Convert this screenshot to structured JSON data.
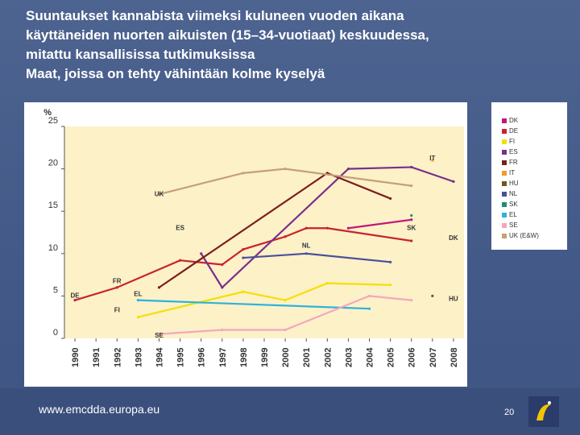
{
  "title_lines": [
    "Suuntaukset kannabista viimeksi kuluneen vuoden aikana",
    "käyttäneiden nuorten aikuisten (15–34-vuotiaat) keskuudessa,",
    "mitattu kansallisissa tutkimuksissa",
    "Maat, joissa on tehty vähintään kolme kyselyä"
  ],
  "footer": {
    "url": "www.emcdda.europa.eu",
    "page": "20"
  },
  "chart_data": {
    "type": "line",
    "ylabel": "%",
    "ylim": [
      0,
      25
    ],
    "yticks": [
      "0",
      "5",
      "10",
      "15",
      "20",
      "25"
    ],
    "categories": [
      "1990",
      "1991",
      "1992",
      "1993",
      "1994",
      "1995",
      "1996",
      "1997",
      "1998",
      "1999",
      "2000",
      "2001",
      "2002",
      "2003",
      "2004",
      "2005",
      "2006",
      "2007",
      "2008"
    ],
    "grid": false,
    "legend_position": "right",
    "series": [
      {
        "name": "DK",
        "color": "#c2187a",
        "values": [
          null,
          null,
          null,
          null,
          null,
          null,
          null,
          null,
          null,
          null,
          null,
          null,
          null,
          13.0,
          null,
          null,
          14.0,
          null,
          null
        ]
      },
      {
        "name": "DE",
        "color": "#c8232c",
        "values": [
          4.5,
          null,
          6.0,
          null,
          null,
          9.2,
          null,
          8.7,
          10.5,
          null,
          12.0,
          13.0,
          13.0,
          null,
          null,
          null,
          11.5,
          null,
          null
        ]
      },
      {
        "name": "FI",
        "color": "#f4e000",
        "values": [
          null,
          null,
          null,
          2.5,
          null,
          null,
          null,
          null,
          5.5,
          null,
          4.5,
          null,
          6.5,
          null,
          null,
          6.3,
          null,
          null,
          null
        ]
      },
      {
        "name": "ES",
        "color": "#7a2f8a",
        "values": [
          null,
          null,
          null,
          null,
          null,
          null,
          10.0,
          6.0,
          null,
          null,
          null,
          null,
          null,
          20.0,
          null,
          null,
          20.2,
          null,
          18.5
        ]
      },
      {
        "name": "FR",
        "color": "#7a1f1f",
        "values": [
          null,
          null,
          null,
          null,
          6.0,
          null,
          null,
          null,
          null,
          null,
          null,
          null,
          19.5,
          null,
          null,
          16.5,
          null,
          null,
          null
        ]
      },
      {
        "name": "IT",
        "color": "#f39b2a",
        "values": [
          null,
          null,
          null,
          null,
          null,
          null,
          null,
          null,
          null,
          null,
          null,
          null,
          null,
          null,
          null,
          null,
          null,
          21.0,
          null
        ]
      },
      {
        "name": "HU",
        "color": "#6b5a1e",
        "values": [
          null,
          null,
          null,
          null,
          null,
          null,
          null,
          null,
          null,
          null,
          null,
          null,
          null,
          null,
          null,
          null,
          null,
          5.0,
          null
        ]
      },
      {
        "name": "NL",
        "color": "#4a4f9c",
        "values": [
          null,
          null,
          null,
          null,
          null,
          null,
          null,
          null,
          9.5,
          null,
          null,
          10.0,
          null,
          null,
          null,
          9.0,
          null,
          null,
          null
        ]
      },
      {
        "name": "SK",
        "color": "#1f8c7a",
        "values": [
          null,
          null,
          null,
          null,
          null,
          null,
          null,
          null,
          null,
          null,
          null,
          null,
          null,
          null,
          null,
          null,
          14.5,
          null,
          null
        ]
      },
      {
        "name": "EL",
        "color": "#2eb2dc",
        "values": [
          null,
          null,
          null,
          4.5,
          null,
          null,
          null,
          null,
          null,
          null,
          null,
          null,
          null,
          null,
          3.5,
          null,
          null,
          null,
          null
        ]
      },
      {
        "name": "SE",
        "color": "#f5a6bd",
        "values": [
          null,
          null,
          null,
          null,
          0.5,
          null,
          null,
          1.0,
          null,
          null,
          1.0,
          null,
          null,
          null,
          5.0,
          null,
          4.5,
          null,
          null
        ]
      },
      {
        "name": "UK (E&W)",
        "color": "#c4a07a",
        "values": [
          null,
          null,
          null,
          null,
          17.0,
          null,
          null,
          null,
          19.5,
          null,
          20.0,
          null,
          null,
          null,
          null,
          null,
          18.0,
          null,
          null
        ]
      }
    ],
    "annotations": [
      "DE",
      "FR",
      "FI",
      "EL",
      "ES",
      "UK",
      "SE",
      "NL",
      "IT",
      "SK",
      "DK",
      "HU"
    ]
  }
}
